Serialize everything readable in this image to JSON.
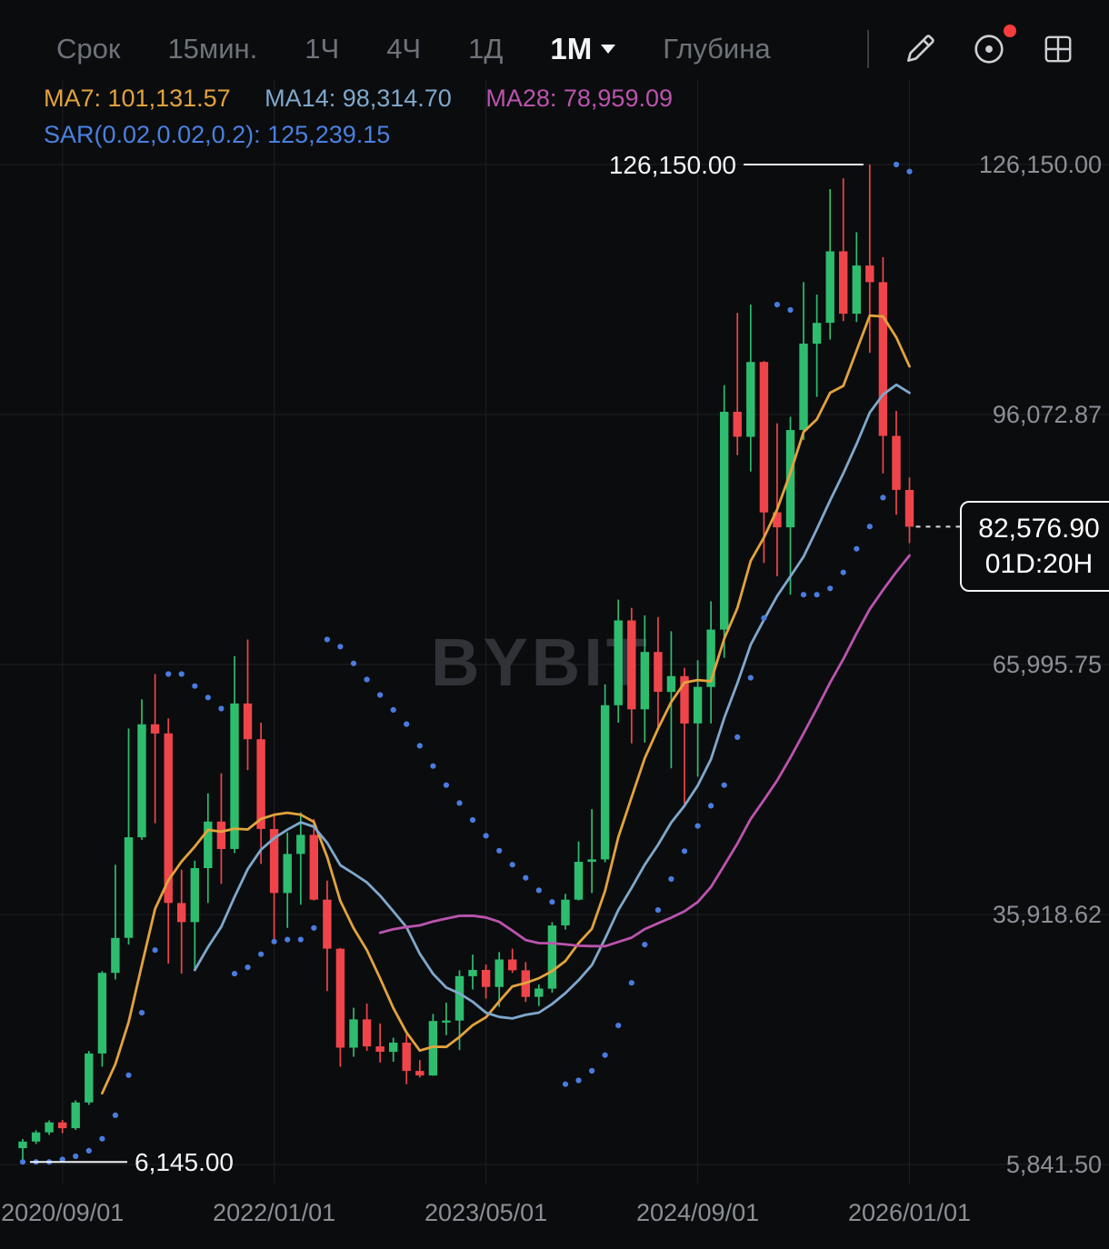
{
  "colors": {
    "background": "#0b0c0e",
    "up": "#2ebd6f",
    "down": "#ef454a",
    "ma7": "#e2a33d",
    "ma14": "#7fa8cc",
    "ma28": "#bb54ae",
    "sar": "#4a7ce0",
    "grid": "#1d1f23",
    "axis_text": "#8b9096",
    "annotation": "#f2f4f6",
    "watermark": "#303237",
    "badge": "#f63c3c"
  },
  "toolbar": {
    "items": [
      {
        "label": "Срок"
      },
      {
        "label": "15мин."
      },
      {
        "label": "1Ч"
      },
      {
        "label": "4Ч"
      },
      {
        "label": "1Д"
      },
      {
        "label": "1M",
        "selected": true
      },
      {
        "label": "Глубина"
      }
    ],
    "icons": [
      {
        "name": "pencil-icon"
      },
      {
        "name": "target-icon",
        "badge": true
      },
      {
        "name": "grid-icon"
      }
    ]
  },
  "indicators": {
    "ma7": "MA7: 101,131.57",
    "ma14": "MA14: 98,314.70",
    "ma28": "MA28: 78,959.09",
    "sar": "SAR(0.02,0.02,0.2): 125,239.15"
  },
  "chart_data": {
    "type": "candlestick",
    "interval": "1M",
    "symbol_watermark": "BYBIT",
    "y_axis": {
      "labels": [
        "126,150.00",
        "96,072.87",
        "65,995.75",
        "35,918.62",
        "5,841.50"
      ],
      "values": [
        126150,
        96072.87,
        65995.75,
        35918.62,
        5841.5
      ]
    },
    "x_axis": {
      "labels": [
        "2020/09/01",
        "2022/01/01",
        "2023/05/01",
        "2024/09/01",
        "2026/01/01"
      ],
      "candle_indices": [
        3,
        19,
        35,
        51,
        67
      ]
    },
    "annotations": {
      "high": {
        "label": "126,150.00",
        "value": 126150,
        "candle_index": 64
      },
      "low": {
        "label": "6,145.00",
        "value": 6145,
        "candle_index": 0
      },
      "last_price": {
        "label": "82,576.90",
        "value": 82576.9,
        "countdown": "01D:20H"
      }
    },
    "overlays": {
      "ma": [
        {
          "period": 7,
          "color_key": "ma7"
        },
        {
          "period": 14,
          "color_key": "ma14"
        },
        {
          "period": 28,
          "color_key": "ma28"
        }
      ],
      "sar": {
        "af_step": 0.02,
        "af_max": 0.2
      }
    },
    "candles": [
      [
        "2020/06",
        7800,
        8900,
        6145,
        8600
      ],
      [
        "2020/07",
        8600,
        9950,
        8300,
        9700
      ],
      [
        "2020/08",
        9700,
        11150,
        9400,
        10900
      ],
      [
        "2020/09",
        10900,
        11200,
        9600,
        10200
      ],
      [
        "2020/10",
        10200,
        13550,
        10000,
        13300
      ],
      [
        "2020/11",
        13300,
        19500,
        13000,
        19200
      ],
      [
        "2020/12",
        19200,
        29100,
        17600,
        28900
      ],
      [
        "2021/01",
        28900,
        41900,
        28100,
        33100
      ],
      [
        "2021/02",
        33100,
        58300,
        32300,
        45200
      ],
      [
        "2021/03",
        45200,
        61800,
        44900,
        58800
      ],
      [
        "2021/04",
        58800,
        64850,
        46900,
        57700
      ],
      [
        "2021/05",
        57700,
        59500,
        30000,
        37300
      ],
      [
        "2021/06",
        37300,
        41300,
        28800,
        35000
      ],
      [
        "2021/07",
        35000,
        42400,
        29300,
        41500
      ],
      [
        "2021/08",
        41500,
        50500,
        37300,
        47100
      ],
      [
        "2021/09",
        47100,
        52900,
        39600,
        43800
      ],
      [
        "2021/10",
        43800,
        67000,
        43300,
        61300
      ],
      [
        "2021/11",
        61300,
        69000,
        53300,
        57000
      ],
      [
        "2021/12",
        57000,
        59000,
        42000,
        46200
      ],
      [
        "2022/01",
        46200,
        47900,
        32900,
        38500
      ],
      [
        "2022/02",
        38500,
        45800,
        34300,
        43200
      ],
      [
        "2022/03",
        43200,
        48200,
        37100,
        45500
      ],
      [
        "2022/04",
        45500,
        47400,
        37600,
        37700
      ],
      [
        "2022/05",
        37700,
        40000,
        26700,
        31800
      ],
      [
        "2022/06",
        31800,
        31900,
        17600,
        19900
      ],
      [
        "2022/07",
        19900,
        24700,
        18800,
        23300
      ],
      [
        "2022/08",
        23300,
        25200,
        19500,
        20050
      ],
      [
        "2022/09",
        20050,
        22800,
        18100,
        19400
      ],
      [
        "2022/10",
        19400,
        21100,
        18200,
        20500
      ],
      [
        "2022/11",
        20500,
        21500,
        15500,
        17100
      ],
      [
        "2022/12",
        17100,
        18400,
        16300,
        16550
      ],
      [
        "2023/01",
        16550,
        23950,
        16500,
        23100
      ],
      [
        "2023/02",
        23100,
        25300,
        21400,
        23150
      ],
      [
        "2023/03",
        23150,
        29200,
        19600,
        28500
      ],
      [
        "2023/04",
        28500,
        31100,
        26900,
        29250
      ],
      [
        "2023/05",
        29250,
        29900,
        25800,
        27200
      ],
      [
        "2023/06",
        27200,
        31400,
        24800,
        30500
      ],
      [
        "2023/07",
        30500,
        31800,
        28900,
        29200
      ],
      [
        "2023/08",
        29200,
        30200,
        25400,
        26000
      ],
      [
        "2023/09",
        26000,
        27500,
        24900,
        27000
      ],
      [
        "2023/10",
        27000,
        35000,
        26500,
        34600
      ],
      [
        "2023/11",
        34600,
        38400,
        34100,
        37700
      ],
      [
        "2023/12",
        37700,
        44700,
        37600,
        42250
      ],
      [
        "2024/01",
        42250,
        48600,
        38500,
        42550
      ],
      [
        "2024/02",
        42550,
        63600,
        42200,
        61100
      ],
      [
        "2024/03",
        61100,
        73800,
        59000,
        71300
      ],
      [
        "2024/04",
        71300,
        72800,
        56500,
        60600
      ],
      [
        "2024/05",
        60600,
        71900,
        56600,
        67500
      ],
      [
        "2024/06",
        67500,
        71700,
        58400,
        62700
      ],
      [
        "2024/07",
        62700,
        70000,
        53500,
        64600
      ],
      [
        "2024/08",
        64600,
        65600,
        49000,
        58900
      ],
      [
        "2024/09",
        58900,
        66500,
        52500,
        63300
      ],
      [
        "2024/10",
        63300,
        73600,
        58900,
        70200
      ],
      [
        "2024/11",
        70200,
        99600,
        66800,
        96400
      ],
      [
        "2024/12",
        96400,
        108300,
        91200,
        93400
      ],
      [
        "2025/01",
        93400,
        109300,
        89200,
        102400
      ],
      [
        "2025/02",
        102400,
        102500,
        78200,
        84300
      ],
      [
        "2025/03",
        84300,
        95000,
        76600,
        82500
      ],
      [
        "2025/04",
        82500,
        95800,
        74400,
        94200
      ],
      [
        "2025/05",
        94200,
        112000,
        93000,
        104600
      ],
      [
        "2025/06",
        104600,
        110500,
        98200,
        107100
      ],
      [
        "2025/07",
        107100,
        123200,
        105100,
        115700
      ],
      [
        "2025/08",
        115700,
        124500,
        107300,
        108200
      ],
      [
        "2025/09",
        108200,
        118000,
        107200,
        114000
      ],
      [
        "2025/10",
        114000,
        126150,
        103500,
        112000
      ],
      [
        "2025/11",
        112000,
        115000,
        89000,
        93500
      ],
      [
        "2025/12",
        93500,
        96500,
        84000,
        87000
      ],
      [
        "2026/01",
        87000,
        88500,
        80600,
        82576.9
      ]
    ]
  }
}
